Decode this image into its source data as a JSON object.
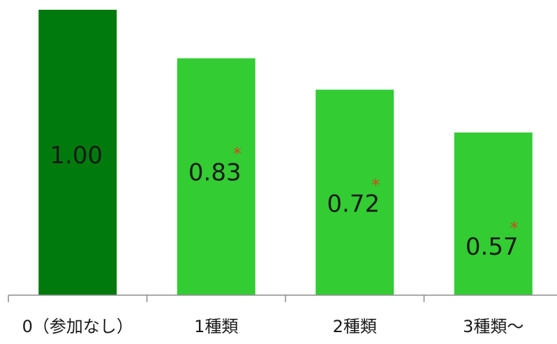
{
  "chart_data": {
    "type": "bar",
    "categories": [
      "0（参加なし）",
      "1種類",
      "2種類",
      "3種類～"
    ],
    "values": [
      1.0,
      0.83,
      0.72,
      0.57
    ],
    "value_labels": [
      "1.00",
      "0.83",
      "0.72",
      "0.57"
    ],
    "significance_markers": [
      "",
      "*",
      "*",
      "*"
    ],
    "colors": [
      "#007a0c",
      "#33cc33",
      "#33cc33",
      "#33cc33"
    ],
    "marker_color": "#d24a1e",
    "ylim": [
      0,
      1.0
    ],
    "grid": false,
    "legend": "none"
  }
}
